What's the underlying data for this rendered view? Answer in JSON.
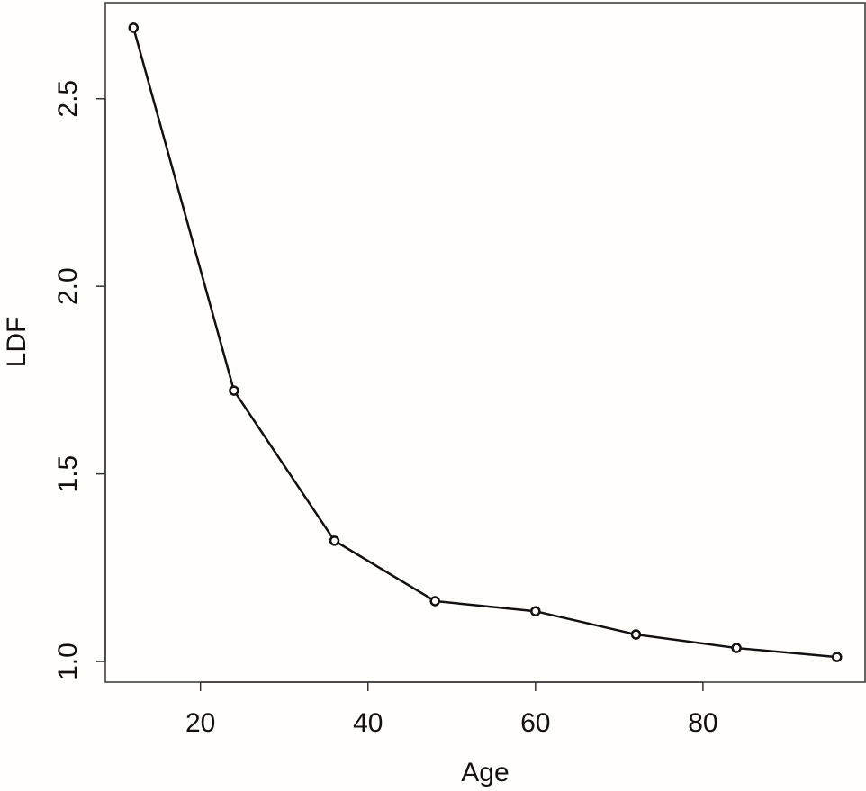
{
  "chart_data": {
    "type": "line",
    "x_label": "Age",
    "y_label": "LDF",
    "x": [
      12,
      24,
      36,
      48,
      60,
      72,
      84,
      96
    ],
    "series": [
      {
        "name": "LDF",
        "color": "#111111",
        "values": [
          2.689,
          1.722,
          1.322,
          1.161,
          1.134,
          1.072,
          1.036,
          1.012
        ]
      }
    ],
    "xlim": [
      8.64,
      99.36
    ],
    "ylim": [
      0.945,
      2.756
    ],
    "xticks": [
      20,
      40,
      60,
      80
    ],
    "yticks": [
      {
        "value": 1,
        "label": "1.0"
      },
      {
        "value": 1.5,
        "label": "1.5"
      },
      {
        "value": 2,
        "label": "2.0"
      },
      {
        "value": 2.5,
        "label": "2.5"
      }
    ],
    "markers": true
  }
}
